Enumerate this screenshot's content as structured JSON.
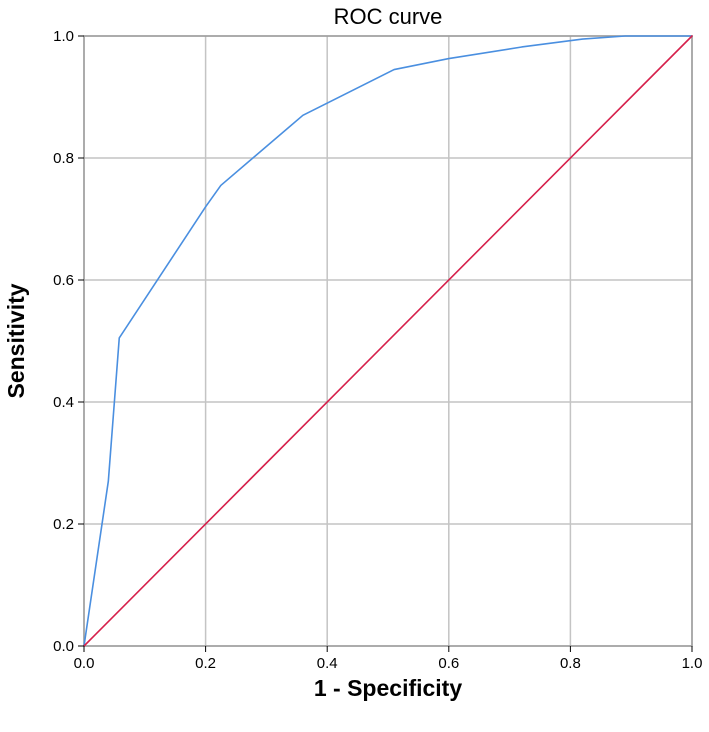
{
  "chart_data": {
    "type": "line",
    "title": "ROC curve",
    "xlabel": "1 - Specificity",
    "ylabel": "Sensitivity",
    "xlim": [
      0,
      1
    ],
    "ylim": [
      0,
      1
    ],
    "x_ticks": [
      0.0,
      0.2,
      0.4,
      0.6,
      0.8,
      1.0
    ],
    "y_ticks": [
      0.0,
      0.2,
      0.4,
      0.6,
      0.8,
      1.0
    ],
    "x_tick_labels": [
      "0.0",
      "0.2",
      "0.4",
      "0.6",
      "0.8",
      "1.0"
    ],
    "y_tick_labels": [
      "0.0",
      "0.2",
      "0.4",
      "0.6",
      "0.8",
      "1.0"
    ],
    "grid": true,
    "series": [
      {
        "color": "#4a8fe0",
        "x": [
          0.0,
          0.04,
          0.058,
          0.2,
          0.225,
          0.36,
          0.51,
          0.6,
          0.72,
          0.82,
          0.89,
          0.95,
          1.0
        ],
        "y": [
          0.0,
          0.27,
          0.505,
          0.72,
          0.755,
          0.87,
          0.945,
          0.963,
          0.982,
          0.995,
          1.0,
          1.0,
          1.0
        ]
      },
      {
        "color": "#d6204b",
        "x": [
          0.0,
          1.0
        ],
        "y": [
          0.0,
          1.0
        ]
      }
    ]
  }
}
